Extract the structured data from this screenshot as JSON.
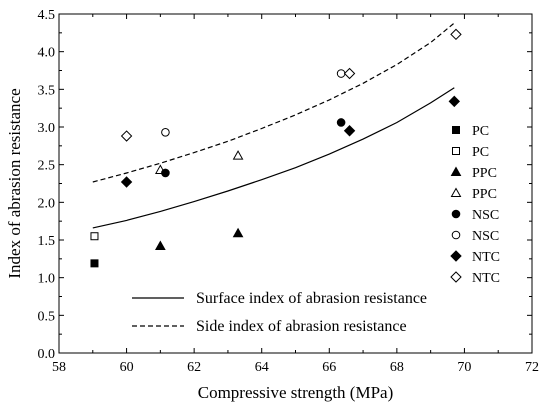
{
  "chart_data": {
    "type": "scatter",
    "xlabel": "Compressive strength (MPa)",
    "ylabel": "Index of abrasion resistance",
    "xlim": [
      58,
      72
    ],
    "ylim": [
      0.0,
      4.5
    ],
    "x_ticks": [
      "58",
      "60",
      "62",
      "64",
      "66",
      "68",
      "70",
      "72"
    ],
    "y_ticks": [
      "0.0",
      "0.5",
      "1.0",
      "1.5",
      "2.0",
      "2.5",
      "3.0",
      "3.5",
      "4.0",
      "4.5"
    ],
    "grid": false,
    "legend_placement": "right",
    "series": [
      {
        "name": "PC",
        "marker": "square",
        "filled": true,
        "points": [
          [
            59.05,
            1.19
          ]
        ]
      },
      {
        "name": "PC",
        "marker": "square",
        "filled": false,
        "points": [
          [
            59.05,
            1.55
          ]
        ]
      },
      {
        "name": "PPC",
        "marker": "triangle",
        "filled": true,
        "points": [
          [
            61.0,
            1.42
          ],
          [
            63.3,
            1.59
          ]
        ]
      },
      {
        "name": "PPC",
        "marker": "triangle",
        "filled": false,
        "points": [
          [
            61.0,
            2.43
          ],
          [
            63.3,
            2.62
          ]
        ]
      },
      {
        "name": "NSC",
        "marker": "circle",
        "filled": true,
        "points": [
          [
            61.15,
            2.39
          ],
          [
            66.35,
            3.06
          ]
        ]
      },
      {
        "name": "NSC",
        "marker": "circle",
        "filled": false,
        "points": [
          [
            61.15,
            2.93
          ],
          [
            66.35,
            3.71
          ]
        ]
      },
      {
        "name": "NTC",
        "marker": "diamond",
        "filled": true,
        "points": [
          [
            60.0,
            2.27
          ],
          [
            66.6,
            2.95
          ],
          [
            69.7,
            3.34
          ]
        ]
      },
      {
        "name": "NTC",
        "marker": "diamond",
        "filled": false,
        "points": [
          [
            60.0,
            2.88
          ],
          [
            66.6,
            3.71
          ],
          [
            69.75,
            4.23
          ]
        ]
      }
    ],
    "curves": [
      {
        "name": "Surface index of abrasion resistance",
        "style": "solid",
        "x": [
          59.0,
          60.0,
          61.0,
          62.0,
          63.0,
          64.0,
          65.0,
          66.0,
          67.0,
          68.0,
          69.0,
          69.7
        ],
        "y": [
          1.66,
          1.76,
          1.88,
          2.01,
          2.15,
          2.3,
          2.46,
          2.64,
          2.84,
          3.06,
          3.32,
          3.52
        ]
      },
      {
        "name": "Side index of abrasion resistance",
        "style": "dashed",
        "x": [
          59.0,
          60.0,
          61.0,
          62.0,
          63.0,
          64.0,
          65.0,
          66.0,
          67.0,
          68.0,
          69.0,
          69.7
        ],
        "y": [
          2.27,
          2.39,
          2.52,
          2.66,
          2.81,
          2.98,
          3.16,
          3.36,
          3.58,
          3.83,
          4.12,
          4.38
        ]
      }
    ]
  }
}
